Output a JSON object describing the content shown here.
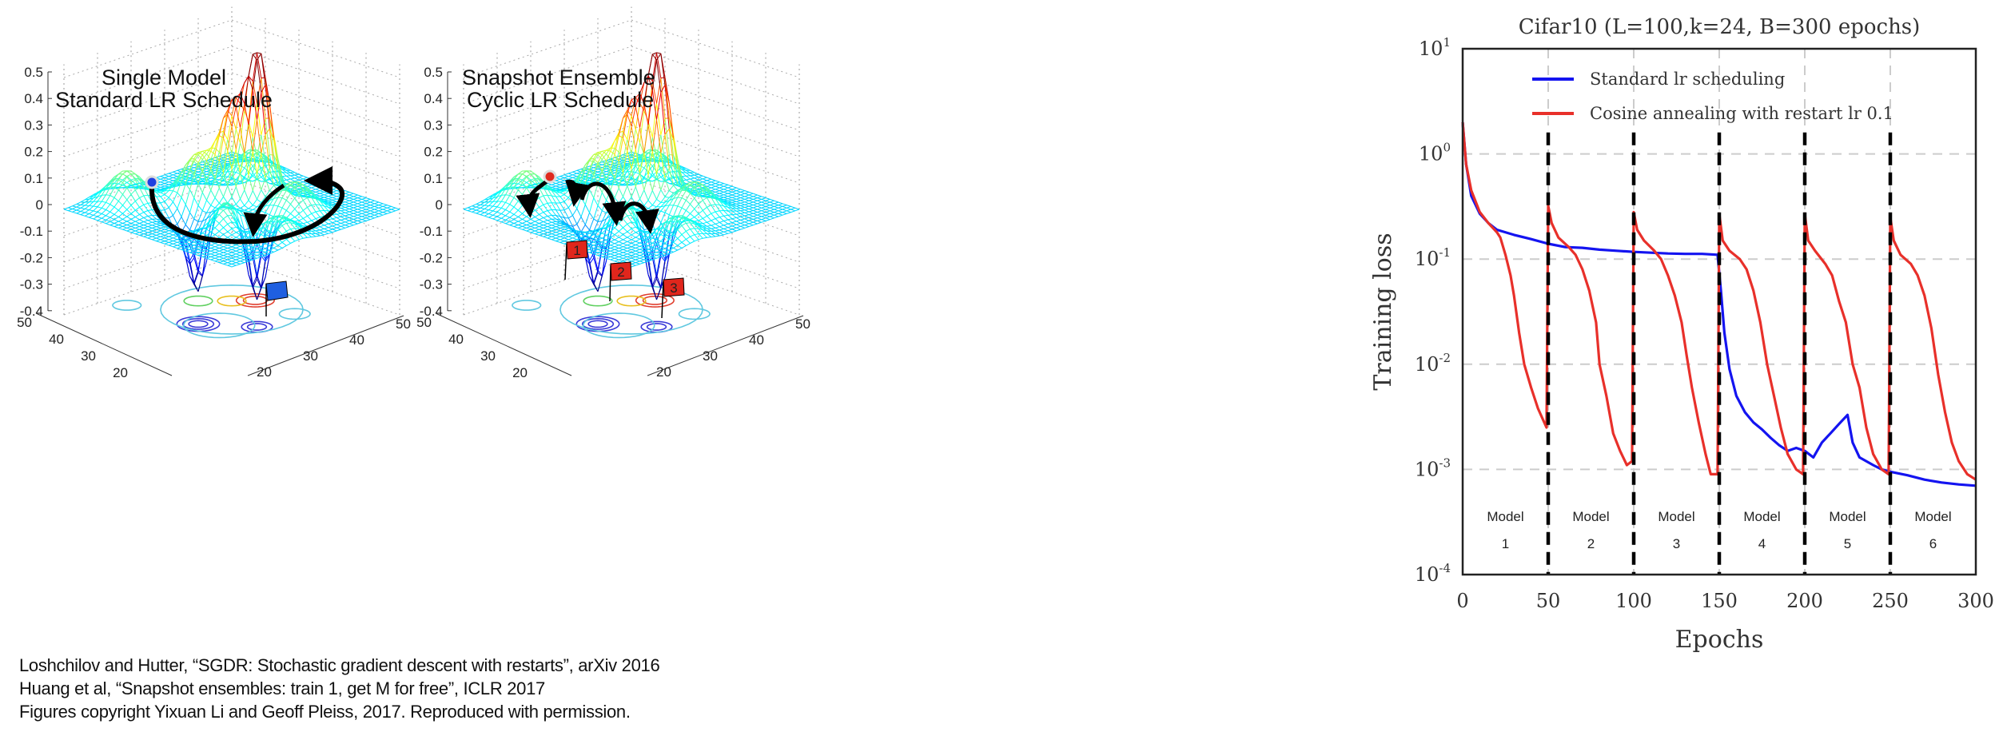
{
  "surface_plots": [
    {
      "title_line1": "Single Model",
      "title_line2": "Standard LR Schedule",
      "z_ticks": [
        "0.5",
        "0.4",
        "0.3",
        "0.2",
        "0.1",
        "0",
        "-0.1",
        "-0.2",
        "-0.3",
        "-0.4"
      ],
      "left_axis_ticks": [
        "50",
        "40",
        "30",
        "20"
      ],
      "right_axis_ticks": [
        "50",
        "40",
        "30",
        "20"
      ],
      "start_point_color": "#1f3fe0",
      "flag_color": "#1f5fe0"
    },
    {
      "title_line1": "Snapshot Ensemble",
      "title_line2": "Cyclic LR Schedule",
      "z_ticks": [
        "0.5",
        "0.4",
        "0.3",
        "0.2",
        "0.1",
        "0",
        "-0.1",
        "-0.2",
        "-0.3",
        "-0.4"
      ],
      "left_axis_ticks": [
        "50",
        "40",
        "30",
        "20"
      ],
      "right_axis_ticks": [
        "50",
        "40",
        "30",
        "20"
      ],
      "start_point_color": "#e02a1f",
      "flag_color": "#e0261c",
      "flags": [
        "1",
        "2",
        "3"
      ]
    }
  ],
  "chart_data": {
    "type": "line",
    "title": "Cifar10 (L=100,k=24, B=300 epochs)",
    "xlabel": "Epochs",
    "ylabel": "Training loss",
    "xlim": [
      0,
      300
    ],
    "ylim": [
      0.0001,
      10
    ],
    "yscale": "log",
    "x_ticks": [
      "0",
      "50",
      "100",
      "150",
      "200",
      "250",
      "300"
    ],
    "y_ticks": [
      {
        "base": "10",
        "exp": "1"
      },
      {
        "base": "10",
        "exp": "0"
      },
      {
        "base": "10",
        "exp": "-1"
      },
      {
        "base": "10",
        "exp": "-2"
      },
      {
        "base": "10",
        "exp": "-3"
      },
      {
        "base": "10",
        "exp": "-4"
      }
    ],
    "grid": true,
    "legend_position": "top",
    "restart_epochs": [
      50,
      100,
      150,
      200,
      250
    ],
    "segment_labels": [
      {
        "line1": "Model",
        "line2": "1"
      },
      {
        "line1": "Model",
        "line2": "2"
      },
      {
        "line1": "Model",
        "line2": "3"
      },
      {
        "line1": "Model",
        "line2": "4"
      },
      {
        "line1": "Model",
        "line2": "5"
      },
      {
        "line1": "Model",
        "line2": "6"
      }
    ],
    "series": [
      {
        "name": "Standard lr scheduling",
        "color": "#1414f0",
        "points": [
          [
            0,
            2
          ],
          [
            2,
            0.8
          ],
          [
            5,
            0.4
          ],
          [
            10,
            0.27
          ],
          [
            15,
            0.22
          ],
          [
            20,
            0.19
          ],
          [
            30,
            0.17
          ],
          [
            40,
            0.155
          ],
          [
            50,
            0.14
          ],
          [
            60,
            0.13
          ],
          [
            70,
            0.128
          ],
          [
            80,
            0.123
          ],
          [
            90,
            0.12
          ],
          [
            100,
            0.117
          ],
          [
            110,
            0.115
          ],
          [
            120,
            0.113
          ],
          [
            130,
            0.112
          ],
          [
            140,
            0.112
          ],
          [
            149,
            0.11
          ],
          [
            151,
            0.05
          ],
          [
            153,
            0.02
          ],
          [
            156,
            0.009
          ],
          [
            160,
            0.005
          ],
          [
            165,
            0.0035
          ],
          [
            170,
            0.0028
          ],
          [
            175,
            0.0024
          ],
          [
            180,
            0.002
          ],
          [
            185,
            0.0017
          ],
          [
            190,
            0.0015
          ],
          [
            195,
            0.0016
          ],
          [
            200,
            0.0015
          ],
          [
            205,
            0.0013
          ],
          [
            210,
            0.0018
          ],
          [
            215,
            0.0022
          ],
          [
            220,
            0.0027
          ],
          [
            225,
            0.0033
          ],
          [
            228,
            0.0018
          ],
          [
            232,
            0.0013
          ],
          [
            240,
            0.0011
          ],
          [
            245,
            0.001
          ],
          [
            250,
            0.00095
          ],
          [
            260,
            0.00088
          ],
          [
            270,
            0.0008
          ],
          [
            280,
            0.00075
          ],
          [
            290,
            0.00072
          ],
          [
            300,
            0.0007
          ]
        ]
      },
      {
        "name": "Cosine annealing with restart lr 0.1",
        "color": "#e8302a",
        "points": [
          [
            0,
            2
          ],
          [
            2,
            0.8
          ],
          [
            5,
            0.45
          ],
          [
            10,
            0.28
          ],
          [
            15,
            0.22
          ],
          [
            20,
            0.18
          ],
          [
            22,
            0.16
          ],
          [
            25,
            0.11
          ],
          [
            28,
            0.07
          ],
          [
            30,
            0.045
          ],
          [
            33,
            0.02
          ],
          [
            36,
            0.01
          ],
          [
            40,
            0.006
          ],
          [
            44,
            0.0038
          ],
          [
            49,
            0.0025
          ],
          [
            50,
            0.32
          ],
          [
            52,
            0.22
          ],
          [
            56,
            0.16
          ],
          [
            62,
            0.13
          ],
          [
            66,
            0.11
          ],
          [
            70,
            0.08
          ],
          [
            74,
            0.05
          ],
          [
            78,
            0.025
          ],
          [
            80,
            0.01
          ],
          [
            84,
            0.005
          ],
          [
            88,
            0.0022
          ],
          [
            92,
            0.0015
          ],
          [
            96,
            0.0011
          ],
          [
            99,
            0.0012
          ],
          [
            100,
            0.28
          ],
          [
            102,
            0.19
          ],
          [
            106,
            0.15
          ],
          [
            112,
            0.12
          ],
          [
            116,
            0.1
          ],
          [
            120,
            0.07
          ],
          [
            124,
            0.045
          ],
          [
            128,
            0.025
          ],
          [
            131,
            0.012
          ],
          [
            134,
            0.006
          ],
          [
            138,
            0.0028
          ],
          [
            142,
            0.0014
          ],
          [
            145,
            0.0009
          ],
          [
            149,
            0.0009
          ],
          [
            150,
            0.27
          ],
          [
            152,
            0.15
          ],
          [
            156,
            0.12
          ],
          [
            162,
            0.1
          ],
          [
            166,
            0.08
          ],
          [
            170,
            0.05
          ],
          [
            174,
            0.025
          ],
          [
            178,
            0.01
          ],
          [
            182,
            0.005
          ],
          [
            186,
            0.0025
          ],
          [
            190,
            0.0014
          ],
          [
            195,
            0.001
          ],
          [
            199,
            0.0009
          ],
          [
            200,
            0.27
          ],
          [
            202,
            0.15
          ],
          [
            206,
            0.12
          ],
          [
            212,
            0.09
          ],
          [
            216,
            0.07
          ],
          [
            220,
            0.04
          ],
          [
            224,
            0.025
          ],
          [
            228,
            0.01
          ],
          [
            232,
            0.006
          ],
          [
            236,
            0.0025
          ],
          [
            240,
            0.0014
          ],
          [
            245,
            0.001
          ],
          [
            249,
            0.0009
          ],
          [
            250,
            0.25
          ],
          [
            252,
            0.15
          ],
          [
            256,
            0.11
          ],
          [
            262,
            0.09
          ],
          [
            266,
            0.07
          ],
          [
            270,
            0.045
          ],
          [
            274,
            0.022
          ],
          [
            278,
            0.008
          ],
          [
            282,
            0.0035
          ],
          [
            286,
            0.0018
          ],
          [
            290,
            0.0012
          ],
          [
            295,
            0.0009
          ],
          [
            300,
            0.0008
          ]
        ]
      }
    ]
  },
  "citations": [
    "Loshchilov and Hutter, “SGDR: Stochastic gradient descent with restarts”, arXiv 2016",
    "Huang et al, “Snapshot ensembles: train 1, get M for free”, ICLR 2017",
    "Figures copyright Yixuan Li and Geoff Pleiss, 2017. Reproduced with permission."
  ]
}
